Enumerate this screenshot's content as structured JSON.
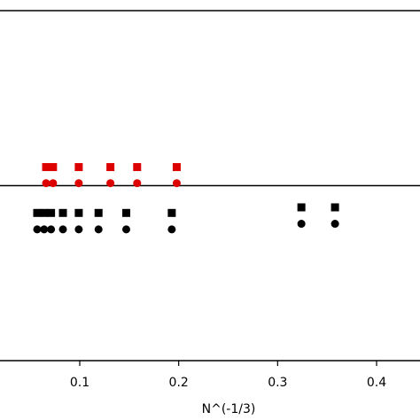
{
  "chart_data": {
    "type": "scatter",
    "title": "",
    "xlabel": "N^(-1/3)",
    "ylabel": "",
    "x_ticks": [
      "0.1",
      "0.2",
      "0.3",
      "0.4"
    ],
    "x_tick_values": [
      0.1,
      0.2,
      0.3,
      0.4
    ],
    "xlim": [
      0.0,
      0.43
    ],
    "ylim": [
      0.0,
      1.0
    ],
    "grid": false,
    "reference_lines": [
      {
        "y": 1.0
      },
      {
        "y": 0.5
      }
    ],
    "series": [
      {
        "marker": "square",
        "color": "#dd0000",
        "x": [
          0.066,
          0.073,
          0.099,
          0.131,
          0.158,
          0.198
        ],
        "y": [
          0.553,
          0.553,
          0.553,
          0.553,
          0.553,
          0.553
        ]
      },
      {
        "marker": "circle",
        "color": "#dd0000",
        "x": [
          0.066,
          0.073,
          0.099,
          0.131,
          0.158,
          0.198
        ],
        "y": [
          0.507,
          0.507,
          0.507,
          0.507,
          0.507,
          0.507
        ]
      },
      {
        "marker": "square",
        "color": "#000000",
        "x": [
          0.057,
          0.064,
          0.071,
          0.083,
          0.099,
          0.119,
          0.147,
          0.193,
          0.324,
          0.358
        ],
        "y": [
          0.422,
          0.422,
          0.422,
          0.422,
          0.422,
          0.422,
          0.422,
          0.422,
          0.438,
          0.438
        ]
      },
      {
        "marker": "circle",
        "color": "#000000",
        "x": [
          0.057,
          0.064,
          0.071,
          0.083,
          0.099,
          0.119,
          0.147,
          0.193,
          0.324,
          0.358
        ],
        "y": [
          0.375,
          0.375,
          0.375,
          0.375,
          0.375,
          0.375,
          0.375,
          0.375,
          0.391,
          0.391
        ]
      }
    ]
  }
}
